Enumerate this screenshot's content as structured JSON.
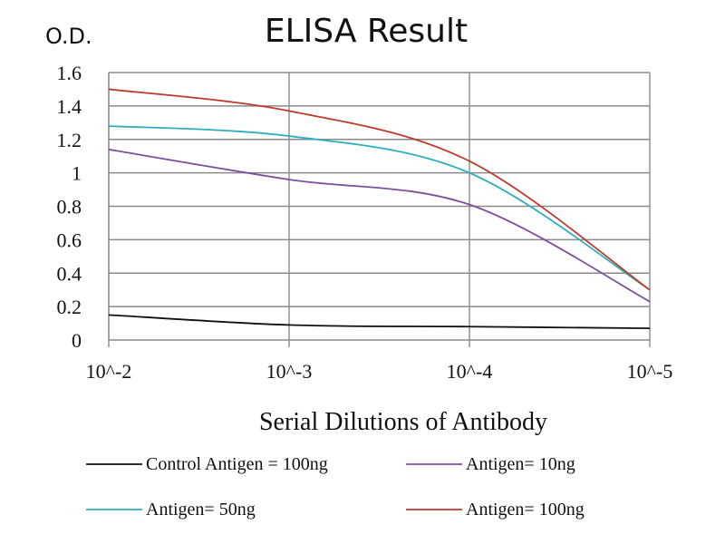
{
  "chart_data": {
    "type": "line",
    "title": "ELISA Result",
    "ylabel": "O.D.",
    "xlabel": "Serial Dilutions  of Antibody",
    "categories": [
      "10^-2",
      "10^-3",
      "10^-4",
      "10^-5"
    ],
    "ylim": [
      0,
      1.6
    ],
    "yticks": [
      "0",
      "0.2",
      "0.4",
      "0.6",
      "0.8",
      "1",
      "1.2",
      "1.4",
      "1.6"
    ],
    "grid": true,
    "legend_position": "bottom",
    "series": [
      {
        "name": "Control Antigen = 100ng",
        "color": "#111111",
        "values": [
          0.15,
          0.09,
          0.08,
          0.07
        ]
      },
      {
        "name": "Antigen= 10ng",
        "color": "#7b4fa0",
        "values": [
          1.14,
          0.96,
          0.81,
          0.23
        ]
      },
      {
        "name": "Antigen= 50ng",
        "color": "#2eaec0",
        "values": [
          1.28,
          1.22,
          1.0,
          0.3
        ]
      },
      {
        "name": "Antigen= 100ng",
        "color": "#c0392b",
        "values": [
          1.5,
          1.37,
          1.07,
          0.3
        ]
      }
    ]
  }
}
